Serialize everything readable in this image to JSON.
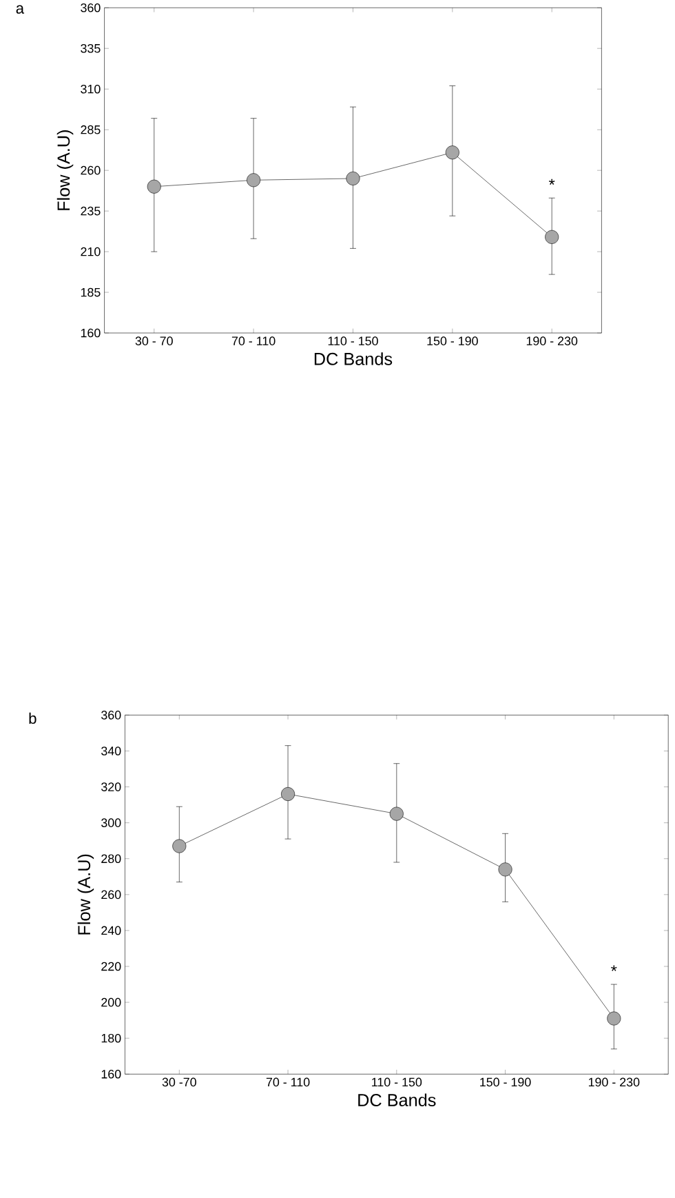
{
  "chart_data": [
    {
      "type": "line",
      "title": "a",
      "xlabel": "DC Bands",
      "ylabel": "Flow (A.U)",
      "marker": "circle",
      "categories": [
        "30 - 70",
        "70 - 110",
        "110 - 150",
        "150 - 190",
        "190 - 230"
      ],
      "series": [
        {
          "color": "#000000",
          "values": [
            250,
            254,
            255,
            271,
            219
          ],
          "errors": [
            [
              210,
              292
            ],
            [
              218,
              292
            ],
            [
              212,
              299
            ],
            [
              232,
              312
            ],
            [
              196,
              243
            ]
          ]
        }
      ],
      "ylim": [
        160,
        360
      ],
      "yticks": [
        160,
        185,
        210,
        235,
        260,
        285,
        310,
        335,
        360
      ],
      "annotations": [
        {
          "text": "*",
          "x": "190 - 230",
          "y": 243
        }
      ]
    },
    {
      "type": "line",
      "title": "b",
      "xlabel": "DC Bands",
      "ylabel": "Flow (A.U)",
      "marker": "circle",
      "categories": [
        "30 -70",
        "70 - 110",
        "110 - 150",
        "150 - 190",
        "190 - 230"
      ],
      "series": [
        {
          "color": "#000000",
          "values": [
            287,
            316,
            305,
            274,
            191
          ],
          "errors": [
            [
              267,
              309
            ],
            [
              291,
              343
            ],
            [
              278,
              333
            ],
            [
              256,
              294
            ],
            [
              174,
              210
            ]
          ]
        }
      ],
      "ylim": [
        160,
        360
      ],
      "yticks": [
        160,
        180,
        200,
        220,
        240,
        260,
        280,
        300,
        320,
        340,
        360
      ],
      "annotations": [
        {
          "text": "*",
          "x": "190 - 230",
          "y": 210
        }
      ]
    }
  ]
}
